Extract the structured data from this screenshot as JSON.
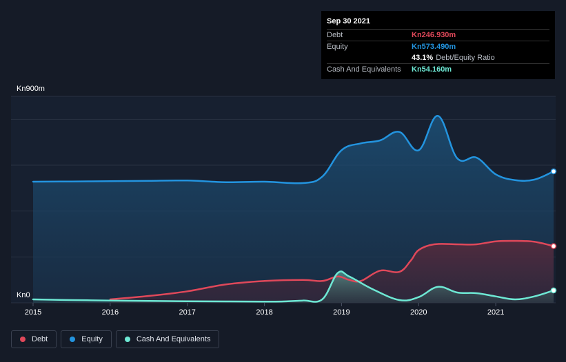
{
  "chart_data": {
    "type": "area",
    "currency": "Kn",
    "y_max_label": "Kn900m",
    "y_min_label": "Kn0",
    "ylim": [
      0,
      900
    ],
    "xlim": [
      2015.0,
      2021.75
    ],
    "x_ticks": [
      "2015",
      "2016",
      "2017",
      "2018",
      "2019",
      "2020",
      "2021"
    ],
    "gridlines": [
      0,
      200,
      400,
      600,
      800,
      900
    ],
    "series": [
      {
        "name": "Debt",
        "color": "#e0485a",
        "points": [
          [
            2016.0,
            15
          ],
          [
            2016.5,
            30
          ],
          [
            2017.0,
            50
          ],
          [
            2017.5,
            80
          ],
          [
            2018.0,
            95
          ],
          [
            2018.5,
            100
          ],
          [
            2018.75,
            95
          ],
          [
            2018.95,
            115
          ],
          [
            2019.1,
            100
          ],
          [
            2019.25,
            95
          ],
          [
            2019.5,
            140
          ],
          [
            2019.75,
            135
          ],
          [
            2019.9,
            185
          ],
          [
            2020.0,
            230
          ],
          [
            2020.2,
            255
          ],
          [
            2020.5,
            255
          ],
          [
            2020.75,
            255
          ],
          [
            2021.0,
            268
          ],
          [
            2021.25,
            270
          ],
          [
            2021.5,
            266
          ],
          [
            2021.75,
            247
          ]
        ]
      },
      {
        "name": "Equity",
        "color": "#2394df",
        "points": [
          [
            2015.0,
            528
          ],
          [
            2015.5,
            529
          ],
          [
            2016.0,
            530
          ],
          [
            2016.5,
            532
          ],
          [
            2017.0,
            533
          ],
          [
            2017.5,
            526
          ],
          [
            2018.0,
            528
          ],
          [
            2018.5,
            522
          ],
          [
            2018.75,
            550
          ],
          [
            2019.0,
            665
          ],
          [
            2019.25,
            695
          ],
          [
            2019.5,
            708
          ],
          [
            2019.75,
            745
          ],
          [
            2020.0,
            665
          ],
          [
            2020.25,
            815
          ],
          [
            2020.5,
            630
          ],
          [
            2020.75,
            633
          ],
          [
            2021.0,
            560
          ],
          [
            2021.25,
            535
          ],
          [
            2021.5,
            537
          ],
          [
            2021.75,
            573
          ]
        ]
      },
      {
        "name": "Cash And Equivalents",
        "color": "#6ee8d4",
        "points": [
          [
            2015.0,
            15
          ],
          [
            2015.5,
            12
          ],
          [
            2016.0,
            10
          ],
          [
            2016.5,
            8
          ],
          [
            2017.0,
            7
          ],
          [
            2017.5,
            6
          ],
          [
            2018.0,
            5
          ],
          [
            2018.25,
            6
          ],
          [
            2018.5,
            10
          ],
          [
            2018.75,
            15
          ],
          [
            2018.95,
            130
          ],
          [
            2019.1,
            115
          ],
          [
            2019.4,
            60
          ],
          [
            2019.75,
            12
          ],
          [
            2020.0,
            25
          ],
          [
            2020.25,
            70
          ],
          [
            2020.5,
            45
          ],
          [
            2020.75,
            42
          ],
          [
            2021.0,
            28
          ],
          [
            2021.25,
            15
          ],
          [
            2021.5,
            28
          ],
          [
            2021.75,
            54
          ]
        ]
      }
    ]
  },
  "tooltip": {
    "date": "Sep 30 2021",
    "rows": [
      {
        "label": "Debt",
        "value": "Kn246.930m",
        "color": "#e0485a"
      },
      {
        "label": "Equity",
        "value": "Kn573.490m",
        "color": "#2394df"
      }
    ],
    "ratio_value": "43.1%",
    "ratio_label": "Debt/Equity Ratio",
    "cash": {
      "label": "Cash And Equivalents",
      "value": "Kn54.160m",
      "color": "#6ee8d4"
    }
  },
  "legend": [
    {
      "label": "Debt",
      "color": "#e0485a"
    },
    {
      "label": "Equity",
      "color": "#2394df"
    },
    {
      "label": "Cash And Equivalents",
      "color": "#6ee8d4"
    }
  ]
}
